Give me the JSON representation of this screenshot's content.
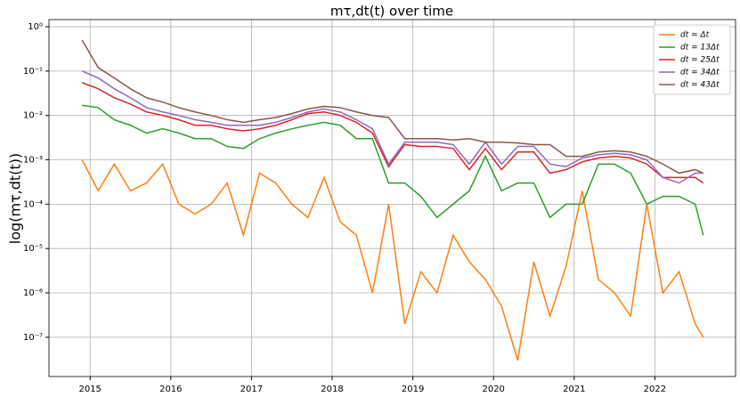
{
  "chart_data": {
    "type": "line",
    "title": "mτ,dt(t) over time",
    "y_label": "log(mτ,dt(t))",
    "y_scale": "log",
    "grid": true,
    "legend_position": "upper-right",
    "x": [
      2014.9,
      2015.1,
      2015.3,
      2015.5,
      2015.7,
      2015.9,
      2016.1,
      2016.3,
      2016.5,
      2016.7,
      2016.9,
      2017.1,
      2017.3,
      2017.5,
      2017.7,
      2017.9,
      2018.1,
      2018.3,
      2018.5,
      2018.7,
      2018.9,
      2019.1,
      2019.3,
      2019.5,
      2019.7,
      2019.9,
      2020.1,
      2020.3,
      2020.5,
      2020.7,
      2020.9,
      2021.1,
      2021.3,
      2021.5,
      2021.7,
      2021.9,
      2022.1,
      2022.3,
      2022.5,
      2022.6
    ],
    "xlim": [
      2014.49,
      2023.0
    ],
    "xticks": [
      2015,
      2016,
      2017,
      2018,
      2019,
      2020,
      2021,
      2022
    ],
    "ylim": [
      1.3e-08,
      1.45
    ],
    "yticks": [
      {
        "value": 1e-07,
        "label": "10⁻⁷"
      },
      {
        "value": 1e-06,
        "label": "10⁻⁶"
      },
      {
        "value": 1e-05,
        "label": "10⁻⁵"
      },
      {
        "value": 0.0001,
        "label": "10⁻⁴"
      },
      {
        "value": 0.001,
        "label": "10⁻³"
      },
      {
        "value": 0.01,
        "label": "10⁻²"
      },
      {
        "value": 0.1,
        "label": "10⁻¹"
      },
      {
        "value": 1,
        "label": "10⁰"
      }
    ],
    "series": [
      {
        "name": "dt = Δt",
        "color": "#ff7f0e",
        "values": [
          0.001,
          0.0002,
          0.0008,
          0.0002,
          0.0003,
          0.0008,
          0.0001,
          6e-05,
          0.0001,
          0.0003,
          2e-05,
          0.0005,
          0.0003,
          0.0001,
          5e-05,
          0.0004,
          4e-05,
          2e-05,
          1e-06,
          0.0001,
          2e-07,
          3e-06,
          1e-06,
          2e-05,
          5e-06,
          2e-06,
          5e-07,
          3e-08,
          5e-06,
          3e-07,
          4e-06,
          0.0002,
          2e-06,
          1e-06,
          3e-07,
          0.0001,
          1e-06,
          3e-06,
          2e-07,
          1e-07
        ]
      },
      {
        "name": "dt = 13Δt",
        "color": "#2ca02c",
        "values": [
          0.017,
          0.015,
          0.008,
          0.006,
          0.004,
          0.005,
          0.004,
          0.003,
          0.003,
          0.002,
          0.0018,
          0.003,
          0.004,
          0.005,
          0.006,
          0.007,
          0.006,
          0.003,
          0.003,
          0.0003,
          0.0003,
          0.00015,
          5e-05,
          0.0001,
          0.0002,
          0.0012,
          0.0002,
          0.0003,
          0.0003,
          5e-05,
          0.0001,
          0.0001,
          0.0008,
          0.0008,
          0.0005,
          0.0001,
          0.00015,
          0.00015,
          0.0001,
          2e-05
        ]
      },
      {
        "name": "dt = 25Δt",
        "color": "#d62728",
        "values": [
          0.055,
          0.04,
          0.025,
          0.018,
          0.012,
          0.01,
          0.008,
          0.006,
          0.006,
          0.005,
          0.0045,
          0.005,
          0.006,
          0.008,
          0.011,
          0.012,
          0.01,
          0.007,
          0.004,
          0.0007,
          0.0022,
          0.002,
          0.002,
          0.0018,
          0.0006,
          0.0018,
          0.0006,
          0.0015,
          0.0015,
          0.0005,
          0.0006,
          0.0009,
          0.0011,
          0.0012,
          0.0011,
          0.0008,
          0.0004,
          0.0004,
          0.0004,
          0.0003
        ]
      },
      {
        "name": "dt = 34Δt",
        "color": "#9467bd",
        "values": [
          0.1,
          0.07,
          0.04,
          0.025,
          0.015,
          0.012,
          0.01,
          0.008,
          0.007,
          0.006,
          0.006,
          0.006,
          0.007,
          0.009,
          0.012,
          0.014,
          0.012,
          0.008,
          0.005,
          0.0008,
          0.0025,
          0.0025,
          0.0025,
          0.0022,
          0.0008,
          0.0025,
          0.0008,
          0.002,
          0.002,
          0.0008,
          0.0007,
          0.0011,
          0.0013,
          0.0014,
          0.0013,
          0.001,
          0.0004,
          0.0003,
          0.0005,
          0.0005
        ]
      },
      {
        "name": "dt = 43Δt",
        "color": "#8c564b",
        "values": [
          0.5,
          0.12,
          0.07,
          0.04,
          0.025,
          0.02,
          0.015,
          0.012,
          0.01,
          0.008,
          0.007,
          0.008,
          0.009,
          0.011,
          0.014,
          0.016,
          0.015,
          0.012,
          0.01,
          0.009,
          0.003,
          0.003,
          0.003,
          0.0028,
          0.003,
          0.0025,
          0.0025,
          0.0024,
          0.0022,
          0.0022,
          0.0012,
          0.0012,
          0.0015,
          0.0016,
          0.0015,
          0.0012,
          0.0008,
          0.0005,
          0.0006,
          0.0005
        ]
      }
    ]
  }
}
